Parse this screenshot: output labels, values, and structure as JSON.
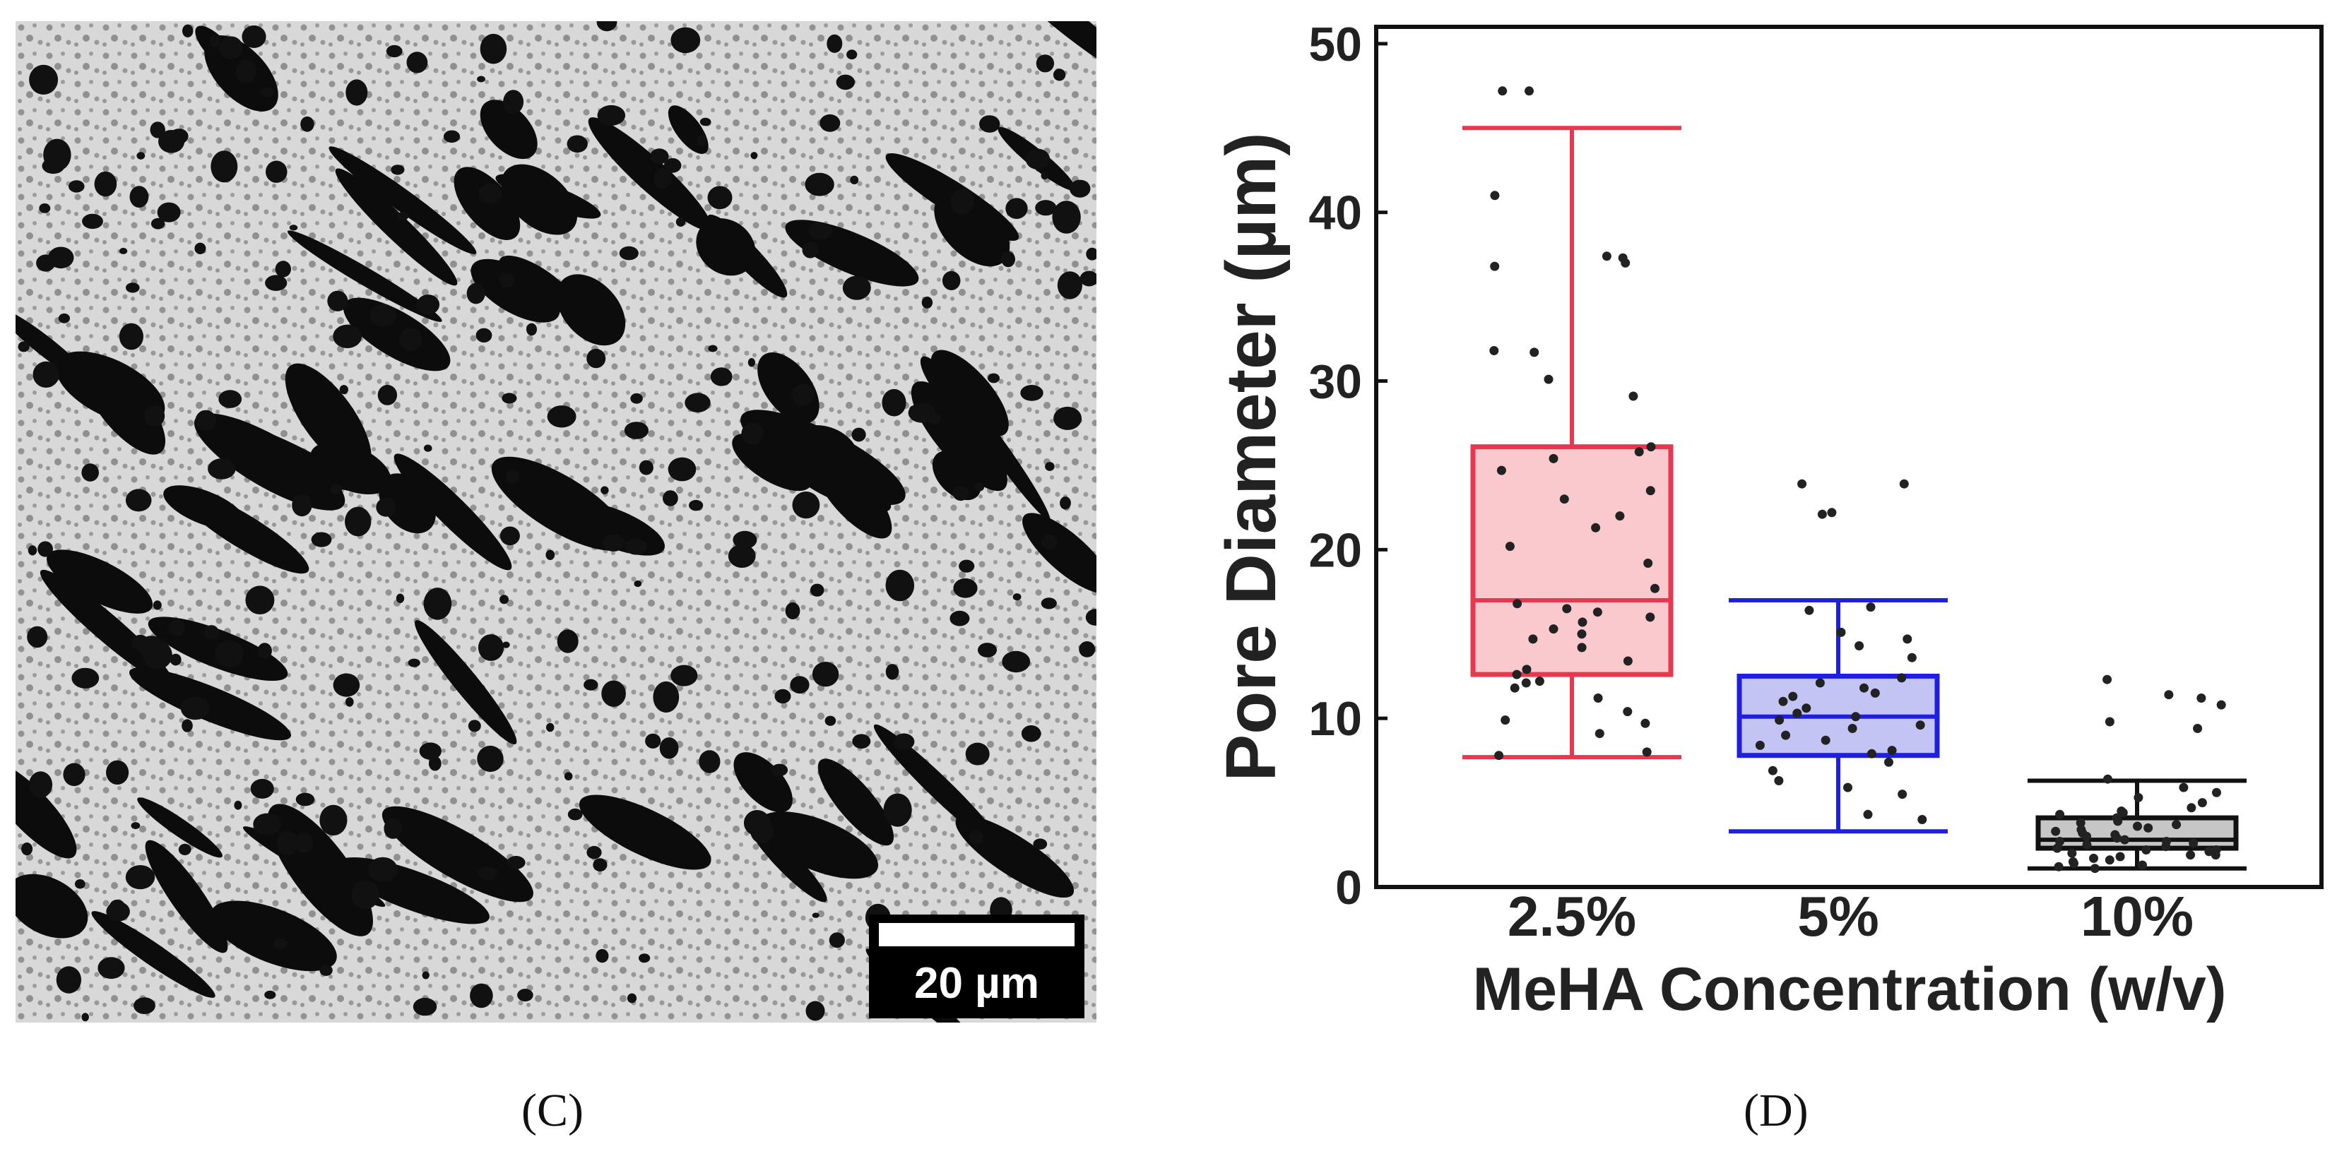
{
  "panels": {
    "sem": {
      "label": "(C)",
      "scale_bar_text": "20 µm"
    },
    "chart": {
      "label": "(D)"
    }
  },
  "chart_data": {
    "type": "box",
    "xlabel": "MeHA Concentration (w/v)",
    "ylabel": "Pore Diameter (µm)",
    "ylim": [
      0,
      51
    ],
    "yticks": [
      0,
      10,
      20,
      30,
      40,
      50
    ],
    "categories": [
      "2.5%",
      "5%",
      "10%"
    ],
    "grid": false,
    "boxes": [
      {
        "category": "2.5%",
        "color": "#e8384f",
        "fill": "#f9c9cd",
        "whisker_low": 7.7,
        "q1": 12.6,
        "median": 17.0,
        "q3": 26.1,
        "whisker_high": 45.0,
        "points": [
          47.2,
          47.2,
          41.0,
          37.0,
          36.8,
          37.3,
          37.4,
          31.8,
          31.7,
          30.1,
          29.1,
          26.1,
          25.8,
          25.4,
          24.7,
          23.5,
          23.0,
          22.0,
          21.3,
          20.2,
          19.2,
          17.7,
          16.8,
          16.5,
          16.3,
          16.0,
          15.7,
          15.3,
          15.0,
          14.7,
          14.2,
          13.4,
          12.9,
          12.6,
          12.2,
          12.1,
          11.8,
          11.2,
          10.4,
          9.9,
          9.7,
          9.1,
          8.0,
          7.8
        ]
      },
      {
        "category": "5%",
        "color": "#1f1fe0",
        "fill": "#c4c4f4",
        "whisker_low": 3.3,
        "q1": 7.8,
        "median": 10.1,
        "q3": 12.5,
        "whisker_high": 17.0,
        "points": [
          23.9,
          23.9,
          22.2,
          22.1,
          16.6,
          16.4,
          15.1,
          14.7,
          14.3,
          13.6,
          12.4,
          12.1,
          11.8,
          11.5,
          11.3,
          11.0,
          10.6,
          10.3,
          10.1,
          9.9,
          9.6,
          9.4,
          9.0,
          8.7,
          8.4,
          8.1,
          7.9,
          7.4,
          6.9,
          6.3,
          5.9,
          5.5,
          4.3,
          4.0
        ]
      },
      {
        "category": "10%",
        "color": "#111111",
        "fill": "#c6c6c6",
        "whisker_low": 1.1,
        "q1": 2.3,
        "median": 2.8,
        "q3": 4.1,
        "whisker_high": 6.3,
        "points": [
          12.3,
          11.4,
          11.2,
          10.8,
          9.8,
          9.4,
          6.4,
          5.9,
          5.6,
          5.3,
          5.0,
          4.7,
          4.5,
          4.3,
          4.1,
          3.9,
          3.8,
          3.7,
          3.5,
          3.4,
          3.3,
          3.2,
          3.0,
          2.9,
          2.8,
          2.7,
          2.6,
          2.5,
          2.4,
          2.3,
          2.2,
          2.1,
          2.0,
          1.9,
          1.8,
          1.7,
          1.6,
          1.5,
          1.4,
          1.3,
          1.2,
          1.1,
          3.6,
          2.7,
          2.2,
          1.9,
          4.4,
          3.1
        ]
      }
    ]
  }
}
